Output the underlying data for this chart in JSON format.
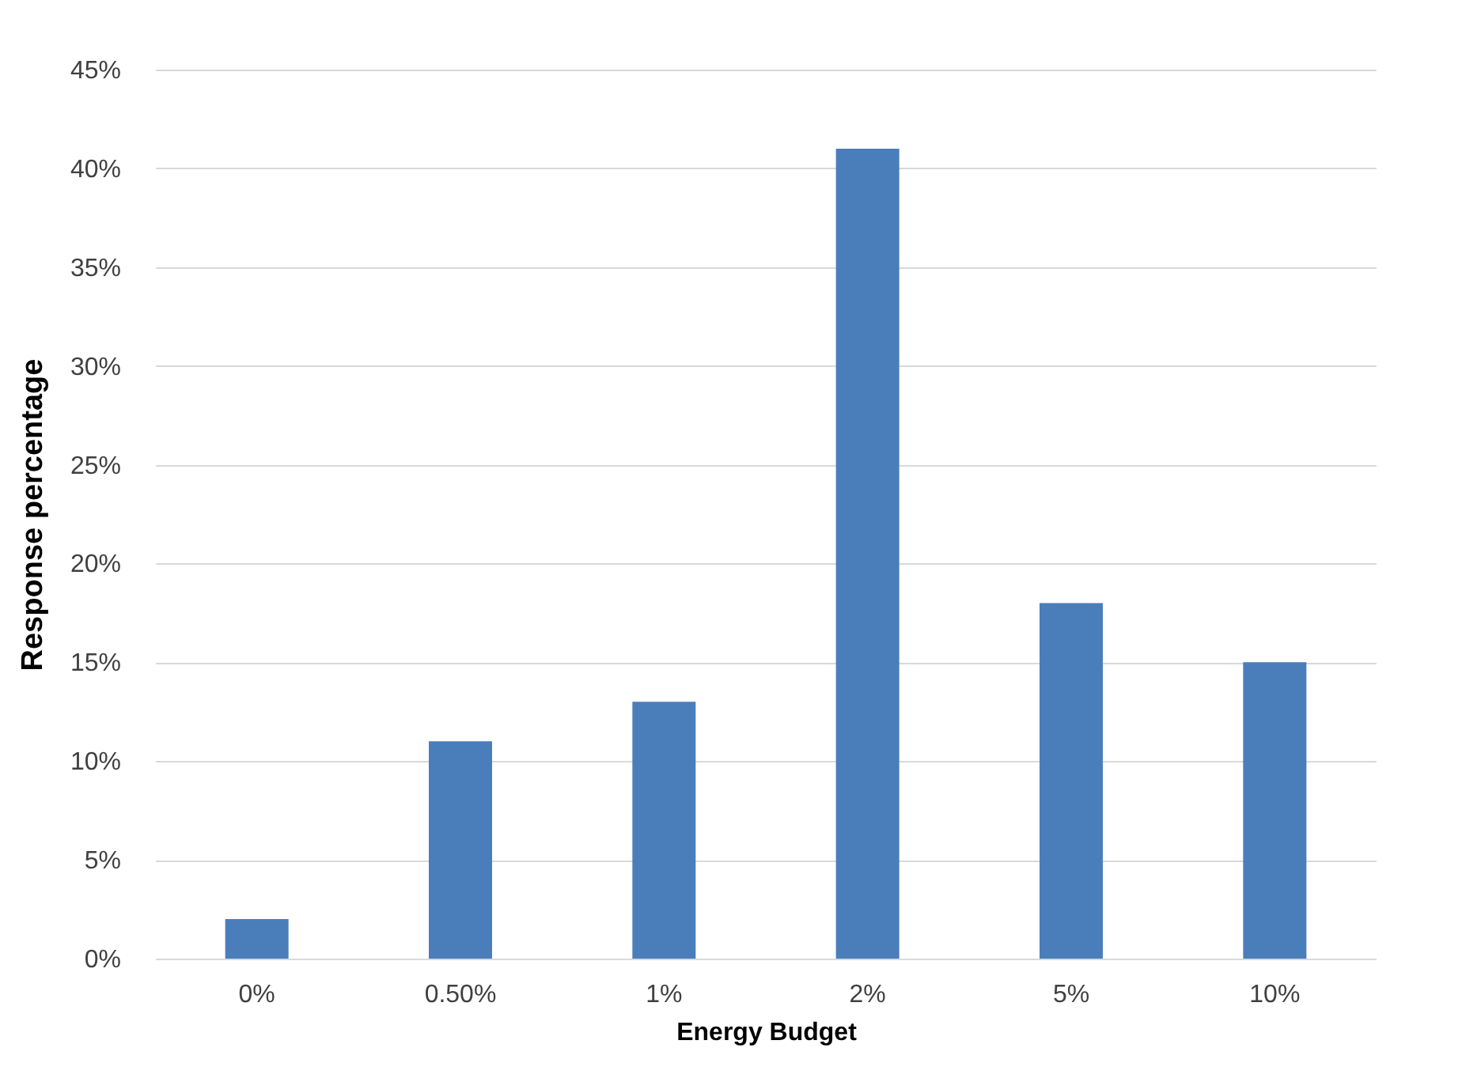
{
  "chart_data": {
    "type": "bar",
    "xlabel": "Energy Budget",
    "ylabel": "Response percentage",
    "categories": [
      "0%",
      "0.50%",
      "1%",
      "2%",
      "5%",
      "10%"
    ],
    "values": [
      2,
      11,
      13,
      41,
      18,
      15
    ],
    "color": "#4a7ebb",
    "ylim": [
      0,
      45
    ],
    "yticks": [
      {
        "value": 0,
        "label": "0%"
      },
      {
        "value": 5,
        "label": "5%"
      },
      {
        "value": 10,
        "label": "10%"
      },
      {
        "value": 15,
        "label": "15%"
      },
      {
        "value": 20,
        "label": "20%"
      },
      {
        "value": 25,
        "label": "25%"
      },
      {
        "value": 30,
        "label": "30%"
      },
      {
        "value": 35,
        "label": "35%"
      },
      {
        "value": 40,
        "label": "40%"
      },
      {
        "value": 45,
        "label": "45%"
      }
    ],
    "grid": "y"
  }
}
